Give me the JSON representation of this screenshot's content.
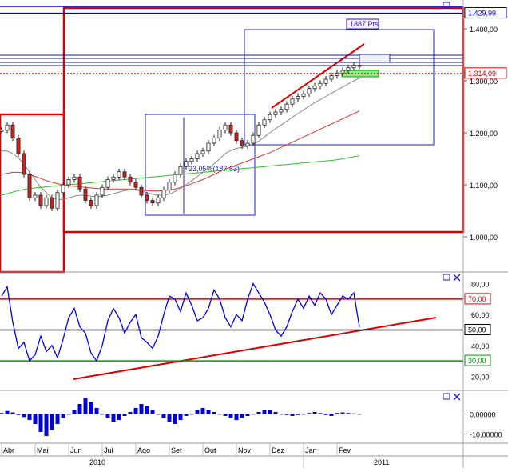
{
  "chart_data": [
    {
      "panel": "price",
      "type": "candlestick",
      "price_scale_labels": [
        "1.400,00",
        "1.300,00",
        "1.200,00",
        "1.100,00",
        "1.000,00"
      ],
      "price_scale_values": [
        1400,
        1300,
        1200,
        1100,
        1000
      ],
      "ylim": [
        940,
        1440
      ],
      "highlighted_levels": [
        {
          "label": "1.429,99",
          "value": 1429.99,
          "color": "#0000cc"
        },
        {
          "label": "1.314,09",
          "value": 1314.09,
          "color": "#dd0000"
        }
      ],
      "annotations": [
        "1887 Pts",
        "23,05%(187,63)"
      ],
      "months": [
        "Abr",
        "Mai",
        "Jun",
        "Jul",
        "Ago",
        "Set",
        "Out",
        "Nov",
        "Dez",
        "Jan",
        "Fev"
      ],
      "years": [
        "2010",
        "2011"
      ],
      "grid": false,
      "series": [
        {
          "kind": "close",
          "values": [
            1205,
            1215,
            1190,
            1160,
            1120,
            1075,
            1080,
            1060,
            1075,
            1055,
            1085,
            1100,
            1110,
            1115,
            1092,
            1070,
            1060,
            1080,
            1095,
            1110,
            1115,
            1125,
            1115,
            1105,
            1095,
            1080,
            1070,
            1065,
            1075,
            1090,
            1105,
            1120,
            1135,
            1145,
            1150,
            1160,
            1165,
            1180,
            1190,
            1205,
            1215,
            1200,
            1185,
            1175,
            1180,
            1195,
            1215,
            1225,
            1235,
            1240,
            1245,
            1255,
            1265,
            1270,
            1275,
            1285,
            1290,
            1295,
            1303,
            1310,
            1315,
            1320,
            1325,
            1330,
            1328
          ]
        },
        {
          "kind": "ma-short",
          "color": "#888888",
          "values": [
            1165,
            1165,
            1160,
            1152,
            1140,
            1125,
            1110,
            1095,
            1085,
            1075,
            1072,
            1072,
            1075,
            1078,
            1080,
            1080,
            1078,
            1077,
            1078,
            1080,
            1083,
            1086,
            1089,
            1090,
            1090,
            1088,
            1085,
            1082,
            1080,
            1080,
            1082,
            1087,
            1093,
            1100,
            1108,
            1116,
            1124,
            1132,
            1140,
            1150,
            1160,
            1166,
            1170,
            1172,
            1174,
            1178,
            1184,
            1192,
            1200,
            1208,
            1215,
            1222,
            1230,
            1237,
            1244,
            1251,
            1258,
            1264,
            1270,
            1276,
            1282,
            1288,
            1294,
            1300,
            1305
          ]
        },
        {
          "kind": "ma-mid",
          "color": "#dd3333",
          "values": [
            1120,
            1122,
            1124,
            1124,
            1123,
            1120,
            1116,
            1112,
            1108,
            1105,
            1102,
            1100,
            1098,
            1097,
            1096,
            1095,
            1094,
            1093,
            1092,
            1092,
            1092,
            1092,
            1092,
            1092,
            1091,
            1090,
            1089,
            1088,
            1088,
            1089,
            1090,
            1092,
            1095,
            1098,
            1102,
            1106,
            1110,
            1115,
            1120,
            1125,
            1130,
            1134,
            1138,
            1142,
            1146,
            1150,
            1154,
            1158,
            1162,
            1167,
            1172,
            1177,
            1182,
            1187,
            1192,
            1197,
            1202,
            1207,
            1212,
            1217,
            1222,
            1227,
            1232,
            1237,
            1242
          ]
        },
        {
          "kind": "ma-long",
          "color": "#33bb33",
          "values": [
            1080,
            1083,
            1086,
            1089,
            1091,
            1093,
            1094,
            1095,
            1096,
            1097,
            1098,
            1099,
            1100,
            1101,
            1102,
            1103,
            1104,
            1105,
            1106,
            1107,
            1108,
            1109,
            1110,
            1111,
            1112,
            1113,
            1114,
            1115,
            1116,
            1117,
            1118,
            1119,
            1120,
            1121,
            1122,
            1123,
            1124,
            1125,
            1126,
            1127,
            1128,
            1129,
            1130,
            1131,
            1132,
            1133,
            1134,
            1135,
            1136,
            1137,
            1138,
            1139,
            1140,
            1141,
            1142,
            1143,
            1144,
            1145,
            1146,
            1147,
            1148,
            1150,
            1152,
            1154,
            1156
          ]
        }
      ]
    },
    {
      "panel": "oscillator",
      "type": "line",
      "scale_labels": [
        "80,00",
        "60,00",
        "40,00",
        "20,00"
      ],
      "scale_values": [
        80,
        60,
        40,
        20
      ],
      "ylim": [
        15,
        85
      ],
      "levels": [
        {
          "label": "70,00",
          "value": 70,
          "color": "#dd0000"
        },
        {
          "label": "50,00",
          "value": 50,
          "color": "#000000"
        },
        {
          "label": "30,00",
          "value": 30,
          "color": "#009900"
        }
      ],
      "series": [
        {
          "color": "#0000ee",
          "values": [
            72,
            78,
            55,
            38,
            42,
            30,
            34,
            46,
            36,
            40,
            32,
            44,
            58,
            64,
            52,
            48,
            35,
            30,
            40,
            56,
            64,
            58,
            48,
            55,
            60,
            45,
            42,
            38,
            46,
            60,
            72,
            70,
            62,
            74,
            66,
            56,
            58,
            64,
            76,
            70,
            58,
            52,
            60,
            56,
            70,
            80,
            74,
            68,
            60,
            50,
            46,
            52,
            62,
            70,
            64,
            72,
            66,
            74,
            70,
            60,
            66,
            72,
            70,
            74,
            52
          ]
        }
      ]
    },
    {
      "panel": "histogram",
      "type": "bar",
      "scale_labels": [
        "0,00000",
        "-10,00000"
      ],
      "scale_values": [
        0,
        -10
      ],
      "ylim": [
        -13,
        9
      ],
      "values": [
        0.5,
        1.5,
        0.8,
        -0.5,
        -1.5,
        -3,
        -5,
        -9,
        -11,
        -8,
        -5,
        -2,
        0,
        2,
        5,
        8,
        6,
        3,
        0,
        -2,
        -4,
        -3,
        -1,
        1,
        3,
        5,
        4,
        2,
        0,
        -2,
        -4,
        -5,
        -3,
        -1,
        0,
        2,
        3,
        2,
        1,
        0,
        -1,
        -2,
        -3,
        -2,
        -1,
        0,
        1,
        2,
        2,
        1,
        0,
        -0.5,
        -1,
        -0.5,
        0,
        0.5,
        1,
        0.5,
        -0.5,
        -1,
        0.5,
        0.8,
        0.5,
        0.3,
        -0.2
      ]
    }
  ]
}
